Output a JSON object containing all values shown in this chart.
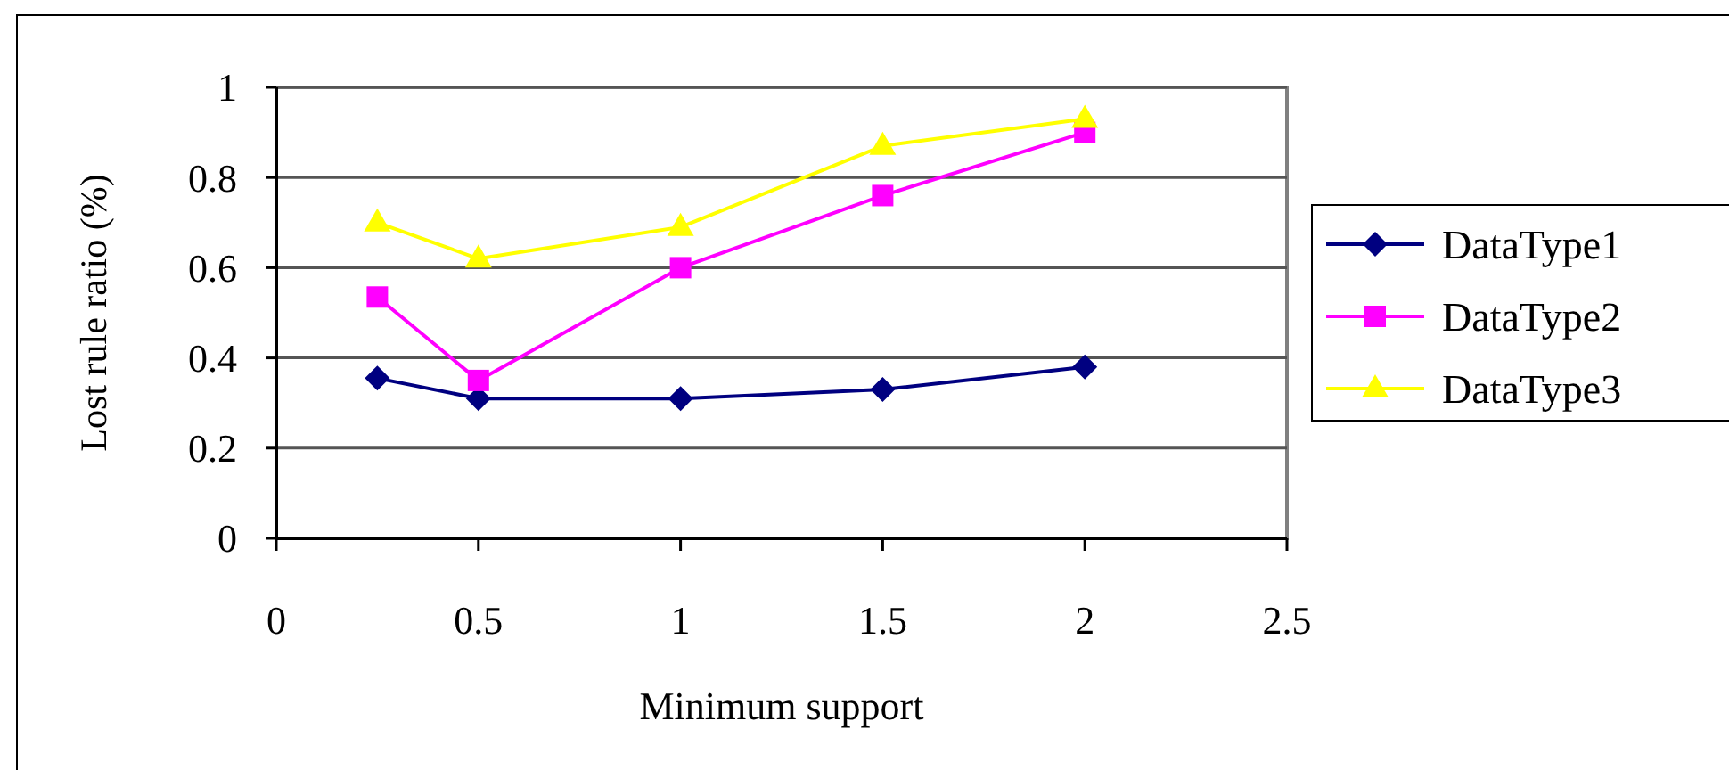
{
  "chart_data": {
    "type": "line",
    "xlabel": "Minimum support",
    "ylabel": "Lost rule ratio (%)",
    "x": [
      0.25,
      0.5,
      1,
      1.5,
      2
    ],
    "series": [
      {
        "name": "DataType1",
        "color": "#000080",
        "marker": "diamond",
        "values": [
          0.355,
          0.31,
          0.31,
          0.33,
          0.38
        ]
      },
      {
        "name": "DataType2",
        "color": "#ff00ff",
        "marker": "square",
        "values": [
          0.535,
          0.35,
          0.6,
          0.76,
          0.9
        ]
      },
      {
        "name": "DataType3",
        "color": "#ffff00",
        "marker": "triangle",
        "values": [
          0.7,
          0.62,
          0.69,
          0.87,
          0.93
        ]
      }
    ],
    "xlim": [
      0,
      2.5
    ],
    "xticks": [
      0,
      0.5,
      1,
      1.5,
      2,
      2.5
    ],
    "ylim": [
      0,
      1
    ],
    "yticks": [
      0,
      0.2,
      0.4,
      0.6,
      0.8,
      1
    ],
    "grid": "y",
    "legend": "right",
    "line_style": "solid"
  }
}
